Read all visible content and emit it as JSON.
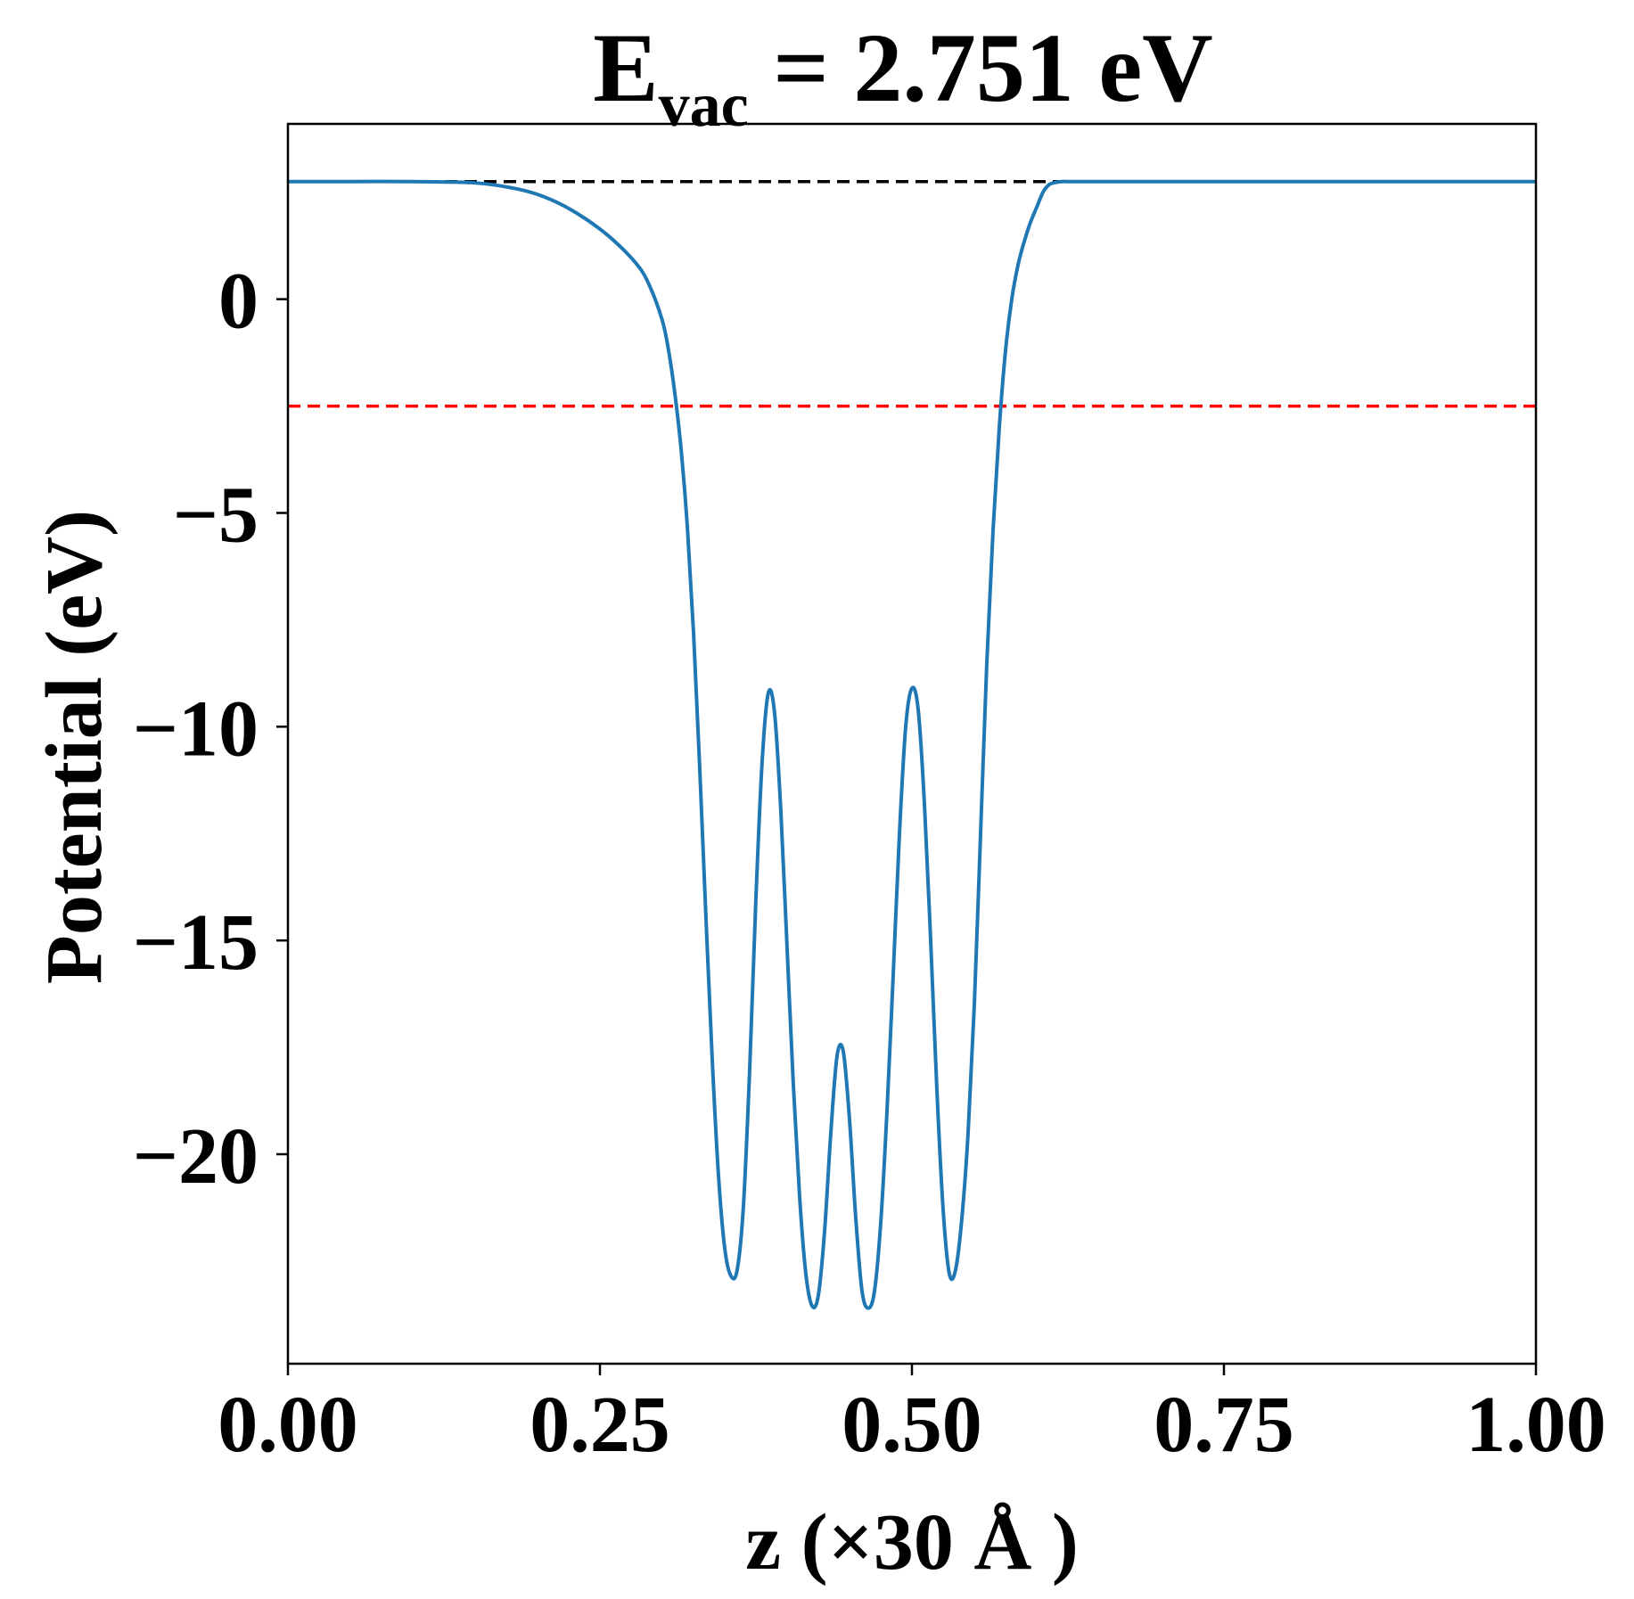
{
  "colors": {
    "curve": "#1f77b4",
    "vacuum_line": "#000000",
    "fermi_line": "#ff0000",
    "axes": "#000000"
  },
  "chart_data": {
    "type": "line",
    "title_main": "E",
    "title_sub": "vac",
    "title_rest": " = 2.751 eV",
    "xlabel": "z (×30 Å )",
    "ylabel": "Potential (eV)",
    "xlim": [
      0.0,
      1.0
    ],
    "ylim": [
      -24.9,
      4.1
    ],
    "xticks": [
      {
        "value": 0.0,
        "label": "0.00"
      },
      {
        "value": 0.25,
        "label": "0.25"
      },
      {
        "value": 0.5,
        "label": "0.50"
      },
      {
        "value": 0.75,
        "label": "0.75"
      },
      {
        "value": 1.0,
        "label": "1.00"
      }
    ],
    "yticks": [
      {
        "value": 0,
        "label": "0"
      },
      {
        "value": -5,
        "label": "−5"
      },
      {
        "value": -10,
        "label": "−10"
      },
      {
        "value": -15,
        "label": "−15"
      },
      {
        "value": -20,
        "label": "−20"
      }
    ],
    "hlines": [
      {
        "name": "vacuum-level",
        "y": 2.751,
        "style": "dashed"
      },
      {
        "name": "fermi-level",
        "y": -2.5,
        "style": "dashed"
      }
    ],
    "series": [
      {
        "name": "planar-average-potential",
        "x": [
          0.0,
          0.05,
          0.1,
          0.15,
          0.18,
          0.2,
          0.22,
          0.24,
          0.26,
          0.28,
          0.29,
          0.3,
          0.305,
          0.31,
          0.315,
          0.32,
          0.325,
          0.33,
          0.335,
          0.34,
          0.345,
          0.35,
          0.355,
          0.36,
          0.365,
          0.37,
          0.375,
          0.38,
          0.385,
          0.39,
          0.395,
          0.4,
          0.405,
          0.41,
          0.415,
          0.42,
          0.425,
          0.43,
          0.435,
          0.44,
          0.445,
          0.45,
          0.455,
          0.46,
          0.465,
          0.47,
          0.475,
          0.48,
          0.485,
          0.49,
          0.495,
          0.5,
          0.505,
          0.51,
          0.515,
          0.52,
          0.525,
          0.53,
          0.535,
          0.54,
          0.545,
          0.55,
          0.555,
          0.56,
          0.565,
          0.57,
          0.575,
          0.58,
          0.585,
          0.59,
          0.595,
          0.6,
          0.605,
          0.61,
          0.615,
          0.62,
          0.625,
          0.63,
          0.64,
          0.66,
          0.68,
          0.7,
          0.72,
          0.74,
          0.76,
          0.8,
          0.85,
          0.9,
          0.95,
          1.0
        ],
        "y": [
          2.751,
          2.751,
          2.75,
          2.72,
          2.6,
          2.45,
          2.2,
          1.85,
          1.4,
          0.8,
          0.3,
          -0.5,
          -1.2,
          -2.2,
          -3.5,
          -5.3,
          -7.8,
          -11.0,
          -14.5,
          -17.8,
          -20.5,
          -22.2,
          -22.85,
          -22.7,
          -21.2,
          -18.0,
          -14.0,
          -10.8,
          -9.2,
          -9.7,
          -12.0,
          -15.2,
          -18.4,
          -21.0,
          -22.8,
          -23.55,
          -23.3,
          -21.8,
          -19.5,
          -17.7,
          -17.6,
          -19.2,
          -21.5,
          -23.2,
          -23.6,
          -23.2,
          -21.6,
          -19.0,
          -15.8,
          -12.5,
          -10.0,
          -9.1,
          -9.6,
          -11.8,
          -15.0,
          -18.5,
          -21.3,
          -22.8,
          -22.7,
          -21.5,
          -19.5,
          -16.5,
          -12.5,
          -8.5,
          -5.4,
          -3.0,
          -1.2,
          0.0,
          0.8,
          1.35,
          1.8,
          2.15,
          2.5,
          2.68,
          2.73,
          2.751,
          2.751,
          2.751,
          2.751,
          2.751,
          2.751,
          2.751,
          2.751,
          2.751,
          2.751,
          2.751,
          2.751,
          2.751,
          2.751,
          2.751
        ]
      }
    ]
  }
}
